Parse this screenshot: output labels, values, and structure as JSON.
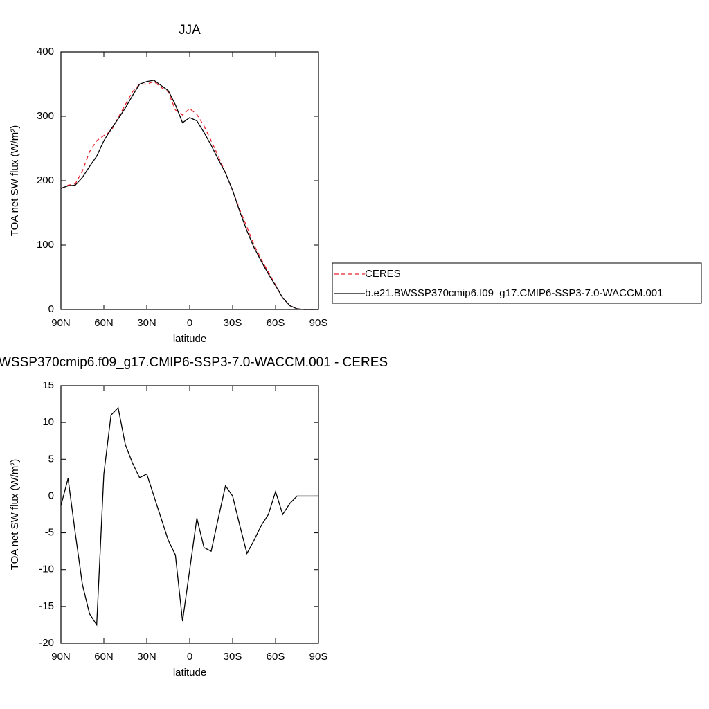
{
  "chart_data": [
    {
      "type": "line",
      "title": "JJA",
      "xlabel": "latitude",
      "ylabel": "TOA net SW flux (W/m²)",
      "x": [
        90,
        85,
        80,
        75,
        70,
        65,
        60,
        55,
        50,
        45,
        40,
        35,
        30,
        25,
        20,
        15,
        10,
        5,
        0,
        -5,
        -10,
        -15,
        -20,
        -25,
        -30,
        -35,
        -40,
        -45,
        -50,
        -55,
        -60,
        -65,
        -70,
        -75,
        -80,
        -85,
        -90
      ],
      "series": [
        {
          "name": "CERES",
          "color": "#e8202a",
          "dash": true,
          "values": [
            188,
            193,
            195,
            215,
            245,
            262,
            270,
            277,
            298,
            318,
            338,
            350,
            350,
            354,
            345,
            338,
            310,
            302,
            312,
            303,
            285,
            262,
            238,
            212,
            185,
            155,
            128,
            100,
            78,
            58,
            38,
            18,
            6,
            1,
            0,
            0,
            0
          ]
        },
        {
          "name": "b.e21.BWSSP370cmip6.f09_g17.CMIP6-SSP3-7.0-WACCM.001",
          "color": "#000000",
          "dash": false,
          "values": [
            188,
            192,
            193,
            205,
            222,
            238,
            262,
            280,
            296,
            313,
            332,
            350,
            354,
            356,
            348,
            340,
            318,
            290,
            298,
            293,
            275,
            255,
            233,
            212,
            185,
            152,
            122,
            96,
            75,
            55,
            37,
            18,
            6,
            1,
            0,
            0,
            0
          ]
        }
      ],
      "xlim": [
        90,
        -90
      ],
      "xticks": [
        {
          "value": 90,
          "label": "90N"
        },
        {
          "value": 60,
          "label": "60N"
        },
        {
          "value": 30,
          "label": "30N"
        },
        0,
        {
          "value": -30,
          "label": "30S"
        },
        {
          "value": -60,
          "label": "60S"
        },
        {
          "value": -90,
          "label": "90S"
        }
      ],
      "ylim": [
        0,
        400
      ],
      "yticks": [
        0,
        100,
        200,
        300,
        400
      ],
      "legend": "right"
    },
    {
      "type": "line",
      "title": "WSSP370cmip6.f09_g17.CMIP6-SSP3-7.0-WACCM.001 - CERES",
      "xlabel": "latitude",
      "ylabel": "TOA net SW flux (W/m²)",
      "x": [
        90,
        85,
        80,
        75,
        70,
        65,
        60,
        55,
        50,
        45,
        40,
        35,
        30,
        25,
        20,
        15,
        10,
        5,
        0,
        -5,
        -10,
        -15,
        -20,
        -25,
        -30,
        -35,
        -40,
        -45,
        -50,
        -55,
        -60,
        -65,
        -70,
        -75,
        -80,
        -85,
        -90
      ],
      "series": [
        {
          "color": "#000000",
          "dash": false,
          "values": [
            -1.3,
            2.4,
            -5,
            -12,
            -16,
            -17.5,
            3,
            11,
            12,
            7,
            4.5,
            2.5,
            3,
            0,
            -3,
            -6,
            -8,
            -17,
            -10,
            -3,
            -7,
            -7.5,
            -3,
            1.4,
            0,
            -4,
            -7.8,
            -6,
            -4,
            -2.5,
            0.6,
            -2.5,
            -1,
            0,
            0,
            0,
            0
          ]
        }
      ],
      "xlim": [
        90,
        -90
      ],
      "xticks": [
        {
          "value": 90,
          "label": "90N"
        },
        {
          "value": 60,
          "label": "60N"
        },
        {
          "value": 30,
          "label": "30N"
        },
        0,
        {
          "value": -30,
          "label": "30S"
        },
        {
          "value": -60,
          "label": "60S"
        },
        {
          "value": -90,
          "label": "90S"
        }
      ],
      "ylim": [
        -20,
        15
      ],
      "yticks": [
        -20,
        -15,
        -10,
        -5,
        0,
        5,
        10,
        15
      ]
    }
  ]
}
